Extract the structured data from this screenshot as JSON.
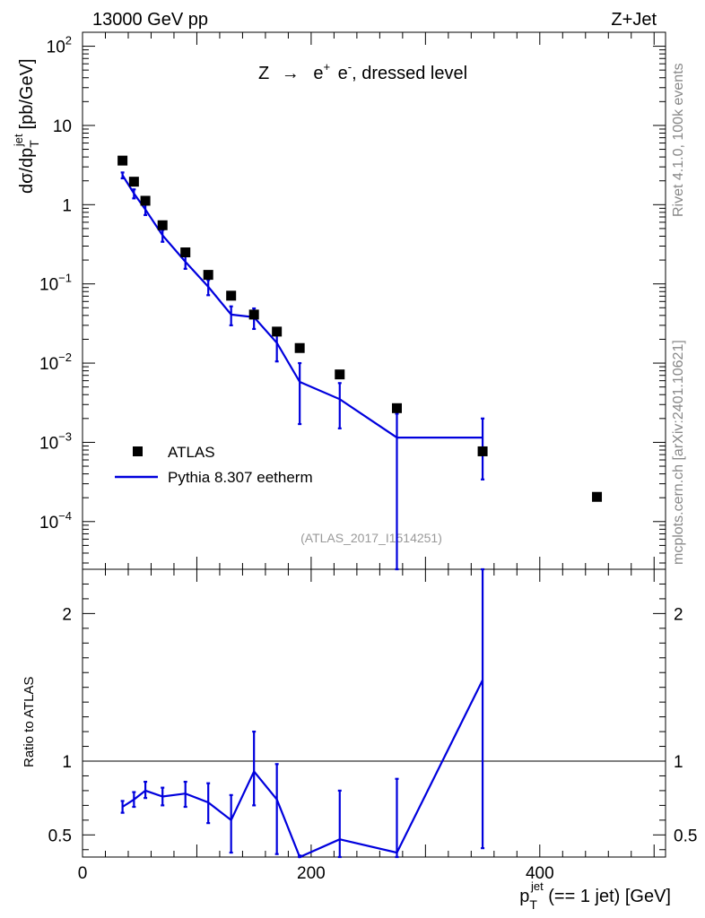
{
  "header": {
    "energy_label": "13000 GeV pp",
    "process_label": "Z+Jet",
    "side_rivet": "Rivet 4.1.0,  100k events",
    "side_mcplots": "mcplots.cern.ch [arXiv:2401.10621]"
  },
  "main_plot": {
    "title_prefix": "Z",
    "title_arrow": "→",
    "title_e1": "e",
    "title_sup1": "+",
    "title_e2": "e",
    "title_sup2": "-",
    "title_suffix": ", dressed level",
    "ylabel_main": "dσ/dp",
    "ylabel_sub": "T",
    "ylabel_sup": "jet",
    "ylabel_unit": "[pb/GeV]",
    "watermark": "(ATLAS_2017_I1514251)",
    "y_ticks": [
      {
        "exp": -4,
        "base": "10",
        "sup": "−4"
      },
      {
        "exp": -3,
        "base": "10",
        "sup": "−3"
      },
      {
        "exp": -2,
        "base": "10",
        "sup": "−2"
      },
      {
        "exp": -1,
        "base": "10",
        "sup": "−1"
      },
      {
        "exp": 0,
        "base": "1",
        "sup": ""
      },
      {
        "exp": 1,
        "base": "10",
        "sup": ""
      },
      {
        "exp": 2,
        "base": "10",
        "sup": "2"
      }
    ]
  },
  "ratio_plot": {
    "ylabel": "Ratio to ATLAS",
    "y_ticks": [
      {
        "value": 0.5,
        "label": "0.5"
      },
      {
        "value": 1,
        "label": "1"
      },
      {
        "value": 2,
        "label": "2"
      }
    ]
  },
  "x_axis": {
    "label_main": "p",
    "label_sub": "T",
    "label_sup": "jet",
    "label_rest": " (== 1 jet) [GeV]",
    "ticks": [
      {
        "value": 0,
        "label": "0"
      },
      {
        "value": 200,
        "label": "200"
      },
      {
        "value": 400,
        "label": "400"
      }
    ]
  },
  "legend": {
    "atlas_label": "ATLAS",
    "mc_label": "Pythia 8.307 eetherm"
  },
  "colors": {
    "data": "#000000",
    "mc": "#0000dd",
    "watermark": "#999999",
    "side_text": "#888888"
  },
  "chart_data": {
    "type": "line",
    "title": "Z → e+ e-, dressed level",
    "xlabel": "pT jet (== 1 jet) [GeV]",
    "ylabel": "dσ/dpT jet [pb/GeV]",
    "xlim": [
      0,
      510
    ],
    "ylim_log": [
      2.5e-05,
      150
    ],
    "ratio_ylim": [
      0.35,
      2.3
    ],
    "ratio_ylabel": "Ratio to ATLAS",
    "series": [
      {
        "name": "ATLAS",
        "style": "markers",
        "x": [
          35,
          45,
          55,
          70,
          90,
          110,
          130,
          150,
          170,
          190,
          225,
          275,
          350,
          450
        ],
        "y": [
          3.6,
          1.95,
          1.12,
          0.55,
          0.25,
          0.13,
          0.071,
          0.041,
          0.025,
          0.0155,
          0.0072,
          0.0027,
          0.00077,
          0.000205
        ]
      },
      {
        "name": "Pythia 8.307 eetherm",
        "style": "line",
        "x": [
          35,
          45,
          55,
          70,
          90,
          110,
          130,
          150,
          170,
          190,
          225,
          275,
          350
        ],
        "bin_edges": [
          30,
          40,
          50,
          60,
          80,
          100,
          120,
          140,
          160,
          180,
          200,
          250,
          300,
          400
        ],
        "y": [
          2.35,
          1.38,
          0.87,
          0.41,
          0.19,
          0.092,
          0.041,
          0.038,
          0.018,
          0.0058,
          0.0035,
          0.00115,
          0.00115
        ],
        "y_err_low": [
          2.15,
          1.2,
          0.74,
          0.34,
          0.155,
          0.072,
          0.03,
          0.027,
          0.0105,
          0.0017,
          0.0015,
          1e-07,
          0.00034
        ],
        "y_err_high": [
          2.55,
          1.56,
          1.0,
          0.48,
          0.225,
          0.112,
          0.052,
          0.049,
          0.026,
          0.01,
          0.0056,
          0.0023,
          0.002
        ]
      }
    ],
    "ratio": {
      "x": [
        35,
        45,
        55,
        70,
        90,
        110,
        130,
        150,
        170,
        190,
        225,
        275,
        350
      ],
      "y": [
        0.69,
        0.74,
        0.8,
        0.76,
        0.78,
        0.72,
        0.6,
        0.93,
        0.74,
        0.33,
        0.47,
        0.38,
        1.55
      ],
      "y_err_low": [
        0.65,
        0.69,
        0.75,
        0.7,
        0.69,
        0.58,
        0.38,
        0.7,
        0.37,
        0.3,
        0.3,
        0.3,
        0.41
      ],
      "y_err_high": [
        0.73,
        0.79,
        0.86,
        0.82,
        0.86,
        0.85,
        0.77,
        1.2,
        0.98,
        0.36,
        0.8,
        0.88,
        2.3
      ]
    }
  }
}
